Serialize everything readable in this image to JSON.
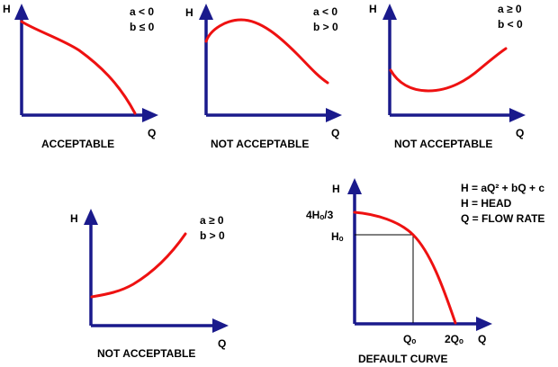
{
  "axis_labels": {
    "y": "H",
    "x": "Q"
  },
  "colors": {
    "axis": "#1a1a8c",
    "curve": "#ee1111",
    "text": "#000000"
  },
  "panels": [
    {
      "cond_a": "a < 0",
      "cond_b": "b ≤ 0",
      "caption": "ACCEPTABLE"
    },
    {
      "cond_a": "a < 0",
      "cond_b": "b > 0",
      "caption": "NOT ACCEPTABLE"
    },
    {
      "cond_a": "a ≥ 0",
      "cond_b": "b < 0",
      "caption": "NOT ACCEPTABLE"
    },
    {
      "cond_a": "a ≥ 0",
      "cond_b": "b > 0",
      "caption": "NOT ACCEPTABLE"
    }
  ],
  "default_curve": {
    "caption": "DEFAULT CURVE",
    "y_tick_top": "4Hₒ/3",
    "y_tick_mid": "Hₒ",
    "x_tick_mid": "Qₒ",
    "x_tick_end": "2Qₒ",
    "legend": [
      "H = aQ² + bQ + c",
      "H = HEAD",
      "Q = FLOW RATE"
    ]
  }
}
